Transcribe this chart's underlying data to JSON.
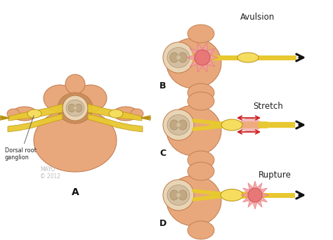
{
  "bg_color": "#ffffff",
  "label_A": "A",
  "label_B": "B",
  "label_C": "C",
  "label_D": "D",
  "label_avulsion": "Avulsion",
  "label_stretch": "Stretch",
  "label_rupture": "Rupture",
  "label_ganglion": "Dorsal root\nganglion",
  "label_mayo": "MAYO\n© 2012",
  "color_spine": "#e8a87c",
  "color_spine_light": "#f0c09a",
  "color_spine_dark": "#c07848",
  "color_nerve": "#e8c830",
  "color_nerve_light": "#f5dd60",
  "color_nerve_dark": "#b89010",
  "color_cord_outer": "#e8d5b5",
  "color_cord_inner": "#d4c0a0",
  "color_cord_deep": "#c0a880",
  "color_injury_fill": "#e87878",
  "color_injury_light": "#f0a0a0",
  "color_text": "#222222",
  "color_label_bold": "#111111",
  "color_mayo": "#aaaaaa",
  "color_arrow": "#111111",
  "color_red_arrow": "#cc2222",
  "figsize": [
    4.74,
    3.42
  ],
  "dpi": 100
}
